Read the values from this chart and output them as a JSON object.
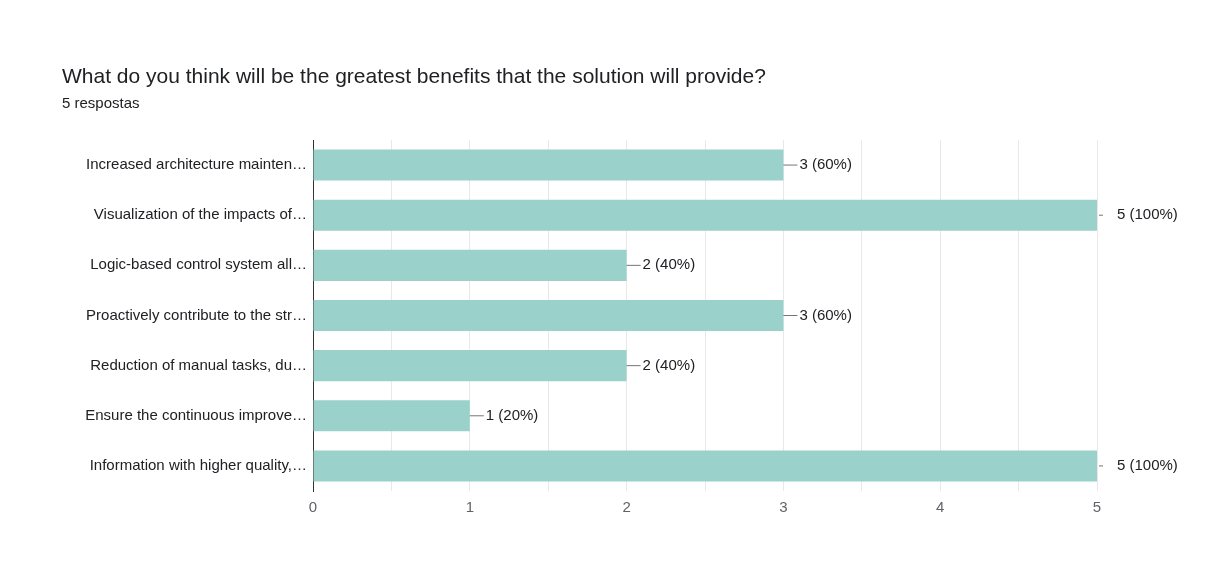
{
  "chart_data": {
    "type": "bar",
    "orientation": "horizontal",
    "title": "What do you think will be the greatest benefits that the solution will provide?",
    "subtitle": "5 respostas",
    "categories": [
      "Increased architecture mainten…",
      "Visualization of the impacts of…",
      "Logic-based control system all…",
      "Proactively contribute to the str…",
      "Reduction of manual tasks, du…",
      "Ensure the continuous improve…",
      "Information with higher quality,…"
    ],
    "values": [
      3,
      5,
      2,
      3,
      2,
      1,
      5
    ],
    "value_labels": [
      "3 (60%)",
      "5 (100%)",
      "2 (40%)",
      "3 (60%)",
      "2 (40%)",
      "1 (20%)",
      "5 (100%)"
    ],
    "color": "#9ad1cb",
    "xlim": [
      0,
      5
    ],
    "xticks": [
      0,
      {
        "value": 0.5,
        "label": null
      },
      1,
      {
        "value": 1.5,
        "label": null
      },
      2,
      {
        "value": 2.5,
        "label": null
      },
      3,
      {
        "value": 3.5,
        "label": null
      },
      4,
      {
        "value": 4.5,
        "label": null
      },
      5
    ],
    "grid": "x",
    "legend": false
  }
}
